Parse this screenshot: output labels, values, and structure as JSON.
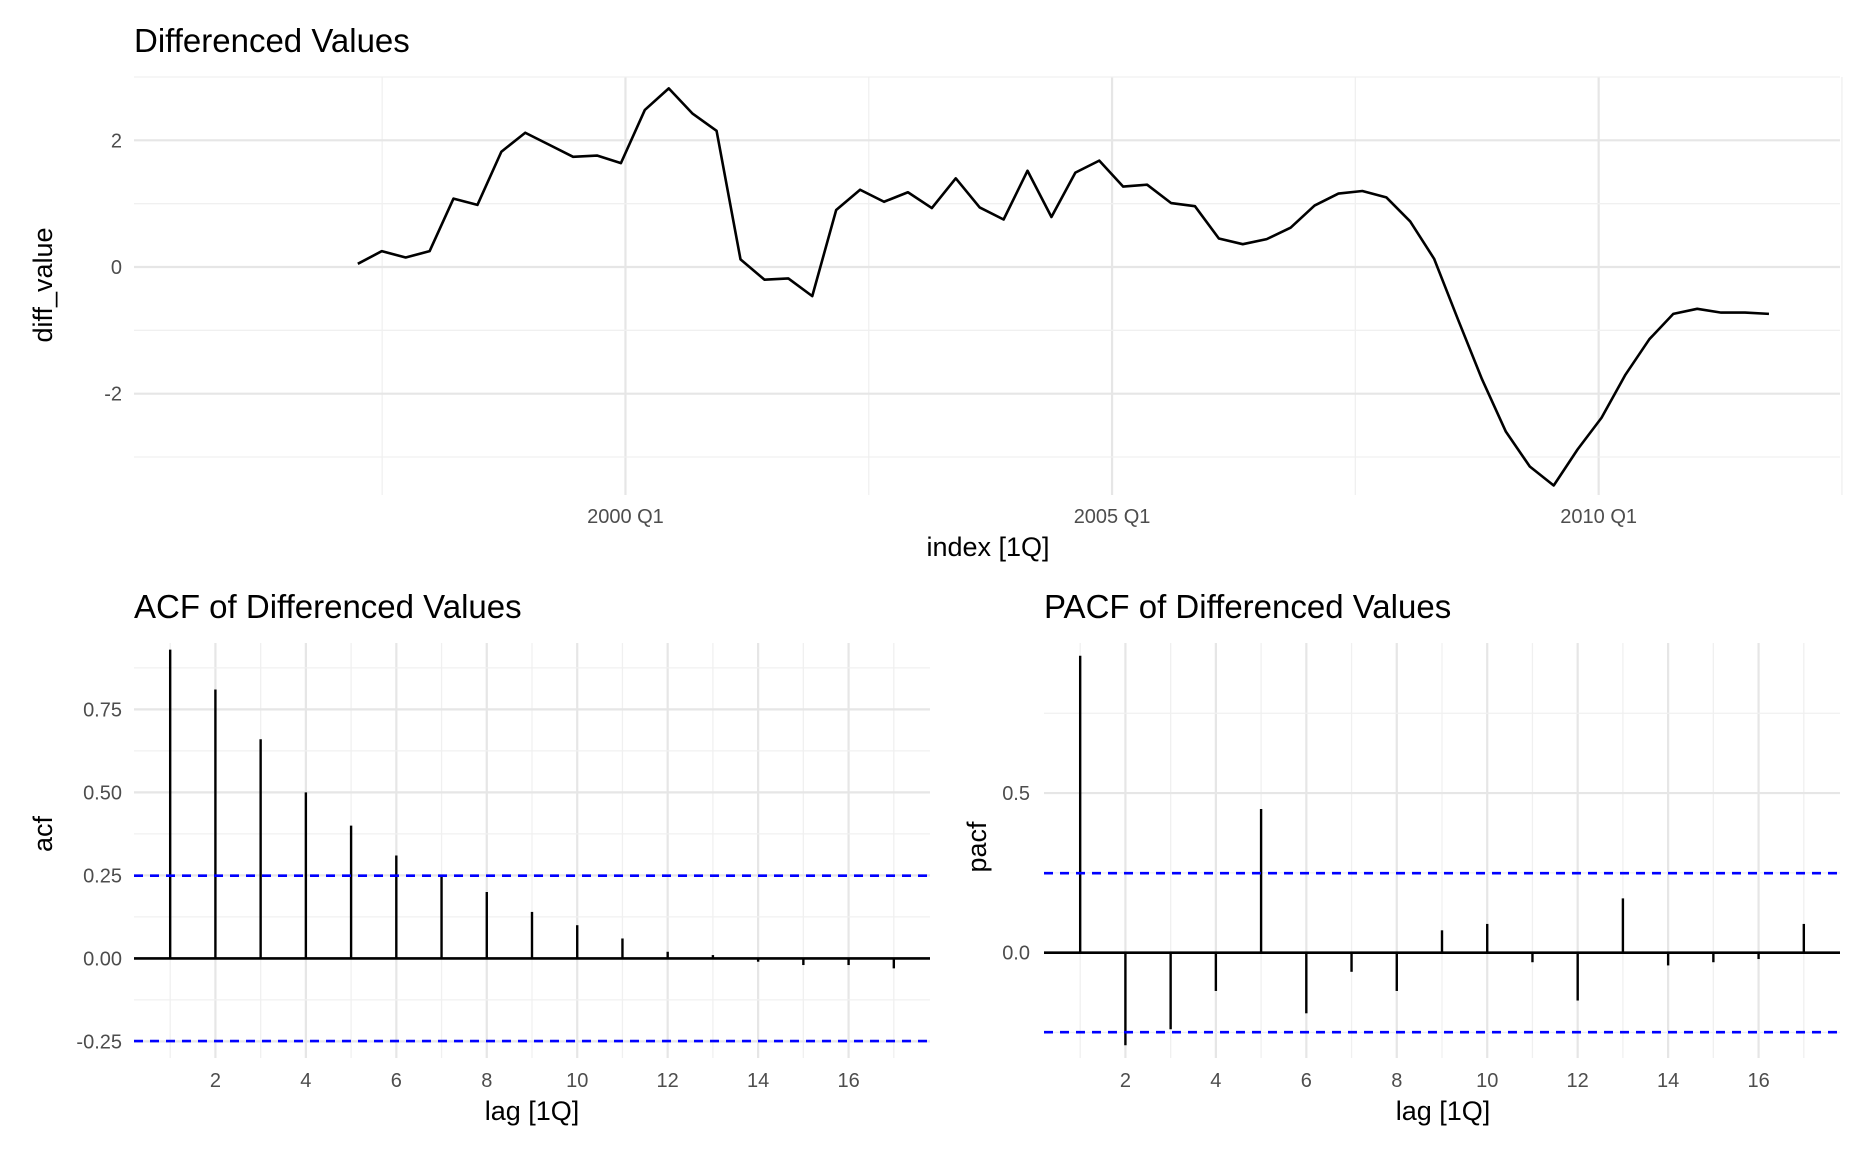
{
  "chart_data": [
    {
      "type": "line",
      "title": "Differenced Values",
      "xlabel": "index [1Q]",
      "ylabel": "diff_value",
      "x_tick_labels": [
        "2000 Q1",
        "2005 Q1",
        "2010 Q1"
      ],
      "y_tick_labels": [
        "-2",
        "0",
        "2"
      ],
      "x_start": "1997 Q2",
      "x_end": "2011 Q4",
      "y_range": [
        -3.6,
        3.0
      ],
      "grid": true,
      "series": [
        {
          "values": [
            0.05,
            0.25,
            0.15,
            0.25,
            1.08,
            0.98,
            1.82,
            2.12,
            1.93,
            1.74,
            1.76,
            1.64,
            2.48,
            2.82,
            2.42,
            2.15,
            0.12,
            -0.2,
            -0.18,
            -0.46,
            0.9,
            1.22,
            1.03,
            1.18,
            0.93,
            1.4,
            0.94,
            0.75,
            1.52,
            0.79,
            1.49,
            1.68,
            1.27,
            1.3,
            1.01,
            0.96,
            0.45,
            0.36,
            0.44,
            0.62,
            0.97,
            1.16,
            1.2,
            1.1,
            0.72,
            0.13,
            -0.83,
            -1.77,
            -2.6,
            -3.15,
            -3.45,
            -2.88,
            -2.38,
            -1.7,
            -1.14,
            -0.74,
            -0.66,
            -0.72,
            -0.72,
            -0.74
          ],
          "color": "#000000"
        }
      ]
    },
    {
      "type": "bar",
      "title": "ACF of Differenced Values",
      "xlabel": "lag [1Q]",
      "ylabel": "acf",
      "lags": [
        1,
        2,
        3,
        4,
        5,
        6,
        7,
        8,
        9,
        10,
        11,
        12,
        13,
        14,
        15,
        16,
        17
      ],
      "values": [
        0.93,
        0.81,
        0.66,
        0.5,
        0.4,
        0.31,
        0.25,
        0.2,
        0.14,
        0.1,
        0.06,
        0.02,
        0.01,
        -0.01,
        -0.02,
        -0.02,
        -0.03
      ],
      "x_tick_labels": [
        "2",
        "4",
        "6",
        "8",
        "10",
        "12",
        "14",
        "16"
      ],
      "y_tick_labels": [
        "-0.25",
        "0.00",
        "0.25",
        "0.50",
        "0.75"
      ],
      "y_range": [
        -0.3,
        0.95
      ],
      "ci": 0.249,
      "ci_color": "#0000ff",
      "grid": true
    },
    {
      "type": "bar",
      "title": "PACF of Differenced Values",
      "xlabel": "lag [1Q]",
      "ylabel": "pacf",
      "lags": [
        1,
        2,
        3,
        4,
        5,
        6,
        7,
        8,
        9,
        10,
        11,
        12,
        13,
        14,
        15,
        16,
        17
      ],
      "values": [
        0.93,
        -0.29,
        -0.24,
        -0.12,
        0.45,
        -0.19,
        -0.06,
        -0.12,
        0.07,
        0.09,
        -0.03,
        -0.15,
        0.17,
        -0.04,
        -0.03,
        -0.02,
        0.09
      ],
      "x_tick_labels": [
        "2",
        "4",
        "6",
        "8",
        "10",
        "12",
        "14",
        "16"
      ],
      "y_tick_labels": [
        "0.0",
        "0.5"
      ],
      "y_range": [
        -0.33,
        0.97
      ],
      "ci": 0.249,
      "ci_color": "#0000ff",
      "grid": true
    }
  ]
}
